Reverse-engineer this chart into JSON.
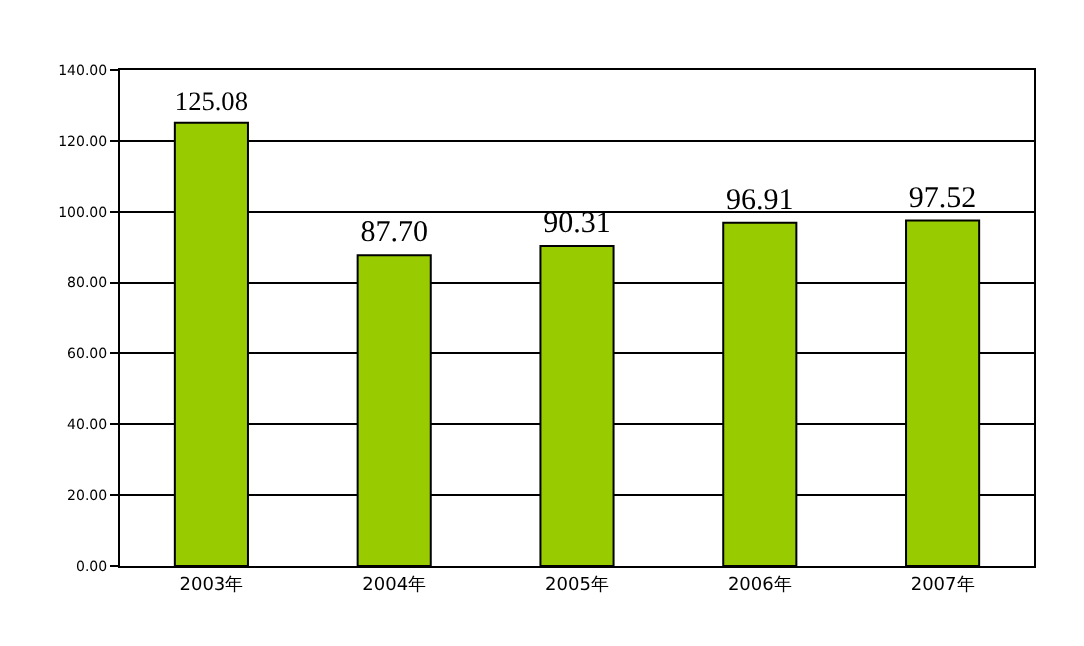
{
  "chart_data": {
    "type": "bar",
    "categories": [
      "2003年",
      "2004年",
      "2005年",
      "2006年",
      "2007年"
    ],
    "values": [
      125.08,
      87.7,
      90.31,
      96.91,
      97.52
    ],
    "value_labels": [
      "125.08",
      "87.70",
      "90.31",
      "96.91",
      "97.52"
    ],
    "color": "#99cc00",
    "ylim": [
      0,
      140
    ],
    "yticks": [
      {
        "value": 0,
        "label": "0.00"
      },
      {
        "value": 20,
        "label": "20.00"
      },
      {
        "value": 40,
        "label": "40.00"
      },
      {
        "value": 60,
        "label": "60.00"
      },
      {
        "value": 80,
        "label": "80.00"
      },
      {
        "value": 100,
        "label": "100.00"
      },
      {
        "value": 120,
        "label": "120.00"
      },
      {
        "value": 140,
        "label": "140.00"
      }
    ],
    "grid": "y",
    "legend": false
  }
}
